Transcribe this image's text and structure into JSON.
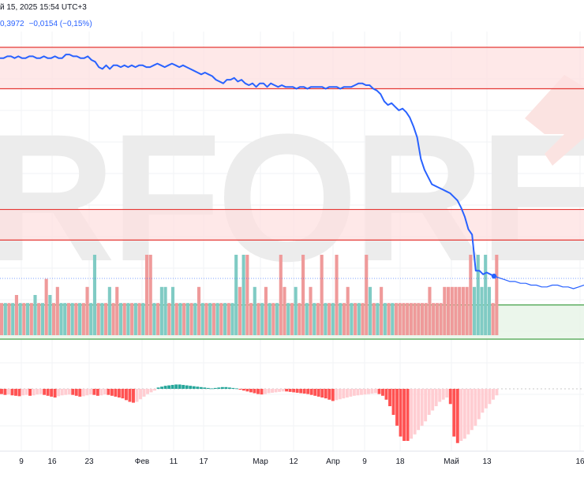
{
  "header": {
    "datetime": "й 15, 2025 15:54 UTC+3",
    "price": "0,3972",
    "change": "−0,0154 (−0,15%)"
  },
  "watermark": "RFOREX.c",
  "colors": {
    "line": "#2962ff",
    "resistance": "#e53935",
    "resistance_fill": "#fde0e0",
    "support": "#43a047",
    "support_fill": "#e6f4e6",
    "vol_up": "#80cbc4",
    "vol_down": "#ef9a9a",
    "macd_neg_strong": "#ff5252",
    "macd_neg_weak": "#ffcdd2",
    "macd_pos": "#26a69a",
    "watermark": "#ececec",
    "watermark_arrow": "#fbe3e1"
  },
  "chart_data": {
    "type": "line",
    "x_ticks": [
      "9",
      "16",
      "23",
      "Фев",
      "11",
      "17",
      "Мар",
      "12",
      "Апр",
      "9",
      "18",
      "Май",
      "13",
      "16"
    ],
    "price_series": [
      96,
      96,
      97,
      97,
      96,
      97,
      96,
      96,
      97,
      97,
      96,
      96,
      97,
      96,
      96,
      97,
      96,
      96,
      98,
      98,
      97,
      97,
      96,
      96,
      97,
      95,
      94,
      91,
      90,
      92,
      90,
      92,
      92,
      91,
      92,
      91,
      92,
      91,
      92,
      92,
      91,
      91,
      92,
      93,
      92,
      91,
      92,
      93,
      92,
      91,
      92,
      91,
      90,
      89,
      88,
      87,
      88,
      87,
      86,
      84,
      83,
      82,
      84,
      84,
      85,
      83,
      84,
      82,
      81,
      82,
      80,
      82,
      82,
      80,
      82,
      81,
      80,
      81,
      80,
      80,
      80,
      79,
      80,
      80,
      79,
      80,
      80,
      80,
      80,
      79,
      80,
      80,
      80,
      79,
      80,
      80,
      80,
      81,
      82,
      82,
      81,
      81,
      79,
      78,
      76,
      72,
      70,
      71,
      69,
      67,
      68,
      66,
      63,
      58,
      52,
      40,
      34,
      30,
      26,
      25,
      24,
      23,
      22,
      21,
      19,
      17,
      13,
      8,
      1,
      -2,
      -22,
      -22,
      -24,
      -23,
      -24,
      -25,
      -26,
      -27,
      -28,
      -28,
      -29,
      -29,
      -30,
      -30,
      -31,
      -31,
      -30,
      -30,
      -31,
      -31,
      -32,
      -31,
      -30
    ],
    "series": [
      {
        "name": "",
        "type": "line"
      }
    ],
    "resistance_zones": [
      [
        79,
        102
      ],
      [
        -5,
        12
      ]
    ],
    "support_zone": [
      -41,
      -60
    ],
    "volume": [
      {
        "v": 0.4,
        "up": false
      },
      {
        "v": 0.4,
        "up": true
      },
      {
        "v": 0.4,
        "up": false
      },
      {
        "v": 0.4,
        "up": true
      },
      {
        "v": 0.5,
        "up": false
      },
      {
        "v": 0.4,
        "up": true
      },
      {
        "v": 0.4,
        "up": false
      },
      {
        "v": 0.4,
        "up": true
      },
      {
        "v": 0.4,
        "up": false
      },
      {
        "v": 0.5,
        "up": true
      },
      {
        "v": 0.4,
        "up": false
      },
      {
        "v": 0.4,
        "up": true
      },
      {
        "v": 0.7,
        "up": false
      },
      {
        "v": 0.5,
        "up": true
      },
      {
        "v": 0.4,
        "up": false
      },
      {
        "v": 0.6,
        "up": false
      },
      {
        "v": 0.4,
        "up": true
      },
      {
        "v": 0.4,
        "up": true
      },
      {
        "v": 0.4,
        "up": false
      },
      {
        "v": 0.4,
        "up": true
      },
      {
        "v": 0.4,
        "up": false
      },
      {
        "v": 0.4,
        "up": true
      },
      {
        "v": 0.4,
        "up": false
      },
      {
        "v": 0.6,
        "up": false
      },
      {
        "v": 0.4,
        "up": true
      },
      {
        "v": 1.0,
        "up": true
      },
      {
        "v": 0.4,
        "up": false
      },
      {
        "v": 0.4,
        "up": true
      },
      {
        "v": 0.4,
        "up": false
      },
      {
        "v": 0.6,
        "up": true
      },
      {
        "v": 0.4,
        "up": false
      },
      {
        "v": 0.6,
        "up": false
      },
      {
        "v": 0.4,
        "up": true
      },
      {
        "v": 0.4,
        "up": false
      },
      {
        "v": 0.4,
        "up": true
      },
      {
        "v": 0.4,
        "up": false
      },
      {
        "v": 0.4,
        "up": true
      },
      {
        "v": 0.4,
        "up": false
      },
      {
        "v": 0.4,
        "up": true
      },
      {
        "v": 1.0,
        "up": false
      },
      {
        "v": 1.0,
        "up": false
      },
      {
        "v": 0.4,
        "up": true
      },
      {
        "v": 0.4,
        "up": false
      },
      {
        "v": 0.6,
        "up": true
      },
      {
        "v": 0.6,
        "up": true
      },
      {
        "v": 0.4,
        "up": false
      },
      {
        "v": 0.6,
        "up": true
      },
      {
        "v": 0.4,
        "up": false
      },
      {
        "v": 0.4,
        "up": true
      },
      {
        "v": 0.4,
        "up": false
      },
      {
        "v": 0.4,
        "up": true
      },
      {
        "v": 0.4,
        "up": false
      },
      {
        "v": 0.4,
        "up": true
      },
      {
        "v": 0.6,
        "up": false
      },
      {
        "v": 0.4,
        "up": true
      },
      {
        "v": 0.4,
        "up": false
      },
      {
        "v": 0.4,
        "up": true
      },
      {
        "v": 0.4,
        "up": false
      },
      {
        "v": 0.4,
        "up": true
      },
      {
        "v": 0.4,
        "up": false
      },
      {
        "v": 0.4,
        "up": true
      },
      {
        "v": 0.4,
        "up": false
      },
      {
        "v": 0.4,
        "up": true
      },
      {
        "v": 1.0,
        "up": true
      },
      {
        "v": 0.6,
        "up": false
      },
      {
        "v": 1.0,
        "up": true
      },
      {
        "v": 1.0,
        "up": false
      },
      {
        "v": 0.4,
        "up": false
      },
      {
        "v": 0.6,
        "up": true
      },
      {
        "v": 0.4,
        "up": false
      },
      {
        "v": 0.4,
        "up": true
      },
      {
        "v": 0.6,
        "up": false
      },
      {
        "v": 0.4,
        "up": true
      },
      {
        "v": 0.4,
        "up": false
      },
      {
        "v": 0.4,
        "up": true
      },
      {
        "v": 1.0,
        "up": false
      },
      {
        "v": 0.6,
        "up": false
      },
      {
        "v": 0.4,
        "up": true
      },
      {
        "v": 0.4,
        "up": false
      },
      {
        "v": 0.6,
        "up": true
      },
      {
        "v": 0.4,
        "up": false
      },
      {
        "v": 1.0,
        "up": false
      },
      {
        "v": 0.4,
        "up": true
      },
      {
        "v": 0.6,
        "up": false
      },
      {
        "v": 0.4,
        "up": true
      },
      {
        "v": 0.4,
        "up": false
      },
      {
        "v": 1.0,
        "up": false
      },
      {
        "v": 0.4,
        "up": true
      },
      {
        "v": 0.4,
        "up": false
      },
      {
        "v": 0.4,
        "up": true
      },
      {
        "v": 1.0,
        "up": false
      },
      {
        "v": 0.4,
        "up": true
      },
      {
        "v": 0.4,
        "up": false
      },
      {
        "v": 0.6,
        "up": false
      },
      {
        "v": 0.4,
        "up": true
      },
      {
        "v": 0.4,
        "up": false
      },
      {
        "v": 0.4,
        "up": true
      },
      {
        "v": 0.4,
        "up": false
      },
      {
        "v": 1.0,
        "up": false
      },
      {
        "v": 0.6,
        "up": true
      },
      {
        "v": 0.4,
        "up": false
      },
      {
        "v": 0.4,
        "up": true
      },
      {
        "v": 0.6,
        "up": false
      },
      {
        "v": 0.4,
        "up": true
      },
      {
        "v": 0.4,
        "up": false
      },
      {
        "v": 0.4,
        "up": true
      },
      {
        "v": 0.4,
        "up": false
      },
      {
        "v": 0.4,
        "up": false
      },
      {
        "v": 0.4,
        "up": false
      },
      {
        "v": 0.4,
        "up": false
      },
      {
        "v": 0.4,
        "up": false
      },
      {
        "v": 0.4,
        "up": false
      },
      {
        "v": 0.4,
        "up": false
      },
      {
        "v": 0.4,
        "up": false
      },
      {
        "v": 0.4,
        "up": false
      },
      {
        "v": 0.6,
        "up": false
      },
      {
        "v": 0.4,
        "up": false
      },
      {
        "v": 0.4,
        "up": false
      },
      {
        "v": 0.4,
        "up": false
      },
      {
        "v": 0.6,
        "up": false
      },
      {
        "v": 0.6,
        "up": false
      },
      {
        "v": 0.6,
        "up": false
      },
      {
        "v": 0.6,
        "up": false
      },
      {
        "v": 0.6,
        "up": false
      },
      {
        "v": 0.6,
        "up": false
      },
      {
        "v": 0.6,
        "up": false
      },
      {
        "v": 1.0,
        "up": false
      },
      {
        "v": 0.6,
        "up": true
      },
      {
        "v": 1.0,
        "up": true
      },
      {
        "v": 0.6,
        "up": true
      },
      {
        "v": 1.0,
        "up": true
      },
      {
        "v": 0.6,
        "up": true
      },
      {
        "v": 0.4,
        "up": false
      },
      {
        "v": 1.0,
        "up": false
      }
    ],
    "macd": [
      -0.12,
      -0.14,
      -0.13,
      -0.15,
      -0.16,
      -0.17,
      -0.15,
      -0.14,
      -0.16,
      -0.15,
      -0.13,
      -0.12,
      -0.14,
      -0.16,
      -0.18,
      -0.2,
      -0.17,
      -0.15,
      -0.14,
      -0.13,
      -0.14,
      -0.16,
      -0.18,
      -0.17,
      -0.15,
      -0.13,
      -0.14,
      -0.16,
      -0.15,
      -0.13,
      -0.14,
      -0.16,
      -0.18,
      -0.2,
      -0.22,
      -0.26,
      -0.3,
      -0.32,
      -0.3,
      -0.24,
      -0.18,
      -0.12,
      -0.08,
      -0.04,
      0.03,
      0.05,
      0.07,
      0.08,
      0.09,
      0.1,
      0.1,
      0.09,
      0.08,
      0.07,
      0.06,
      0.05,
      0.04,
      0.03,
      0.02,
      0.01,
      0.02,
      0.03,
      0.04,
      0.04,
      0.03,
      0.02,
      0.01,
      -0.02,
      -0.04,
      -0.06,
      -0.08,
      -0.1,
      -0.12,
      -0.13,
      -0.12,
      -0.1,
      -0.09,
      -0.08,
      -0.07,
      -0.06,
      -0.06,
      -0.07,
      -0.08,
      -0.09,
      -0.1,
      -0.11,
      -0.12,
      -0.14,
      -0.16,
      -0.18,
      -0.2,
      -0.22,
      -0.25,
      -0.28,
      -0.26,
      -0.24,
      -0.22,
      -0.2,
      -0.18,
      -0.16,
      -0.15,
      -0.14,
      -0.13,
      -0.12,
      -0.11,
      -0.1,
      -0.12,
      -0.16,
      -0.25,
      -0.4,
      -0.6,
      -0.85,
      -1.1,
      -1.2,
      -1.2,
      -1.15,
      -1.05,
      -0.95,
      -0.85,
      -0.75,
      -0.6,
      -0.5,
      -0.4,
      -0.3,
      -0.25,
      -0.2,
      -0.35,
      -1.1,
      -1.25,
      -1.2,
      -1.15,
      -1.05,
      -0.95,
      -0.85,
      -0.7,
      -0.55,
      -0.45,
      -0.35,
      -0.25,
      -0.15
    ]
  }
}
